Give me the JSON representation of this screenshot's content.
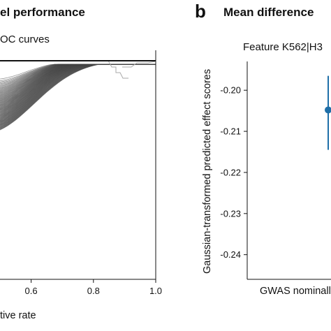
{
  "panel_a": {
    "header": "el performance",
    "subtitle": "OC curves",
    "xlabel": "tive rate"
  },
  "panel_b": {
    "letter": "b",
    "header": "Mean difference",
    "subtitle": "Feature K562|H3",
    "ylabel": "Gaussian-transformed predicted effect scores",
    "xlabel": "GWAS nominally"
  },
  "chart_data": [
    {
      "type": "line",
      "panel": "a",
      "description_visible": "many ROC curves",
      "x_ticks": [
        0.6,
        0.8,
        1.0
      ],
      "x_tick_labels": [
        "0.6",
        "0.8",
        "1.0"
      ],
      "xlim": [
        0.5,
        1.0
      ],
      "ylim": [
        0.7,
        1.0
      ],
      "curve_count": 120,
      "curve_start_y_range": [
        0.905,
        0.975
      ],
      "series_color": "#444444"
    },
    {
      "type": "scatter",
      "panel": "b",
      "y_ticks": [
        -0.2,
        -0.21,
        -0.22,
        -0.23,
        -0.24
      ],
      "y_tick_labels": [
        "-0.20",
        "-0.21",
        "-0.22",
        "-0.23",
        "-0.24"
      ],
      "ylim": [
        -0.246,
        -0.193
      ],
      "categories": [
        "GWAS nominally"
      ],
      "points": [
        {
          "category": "GWAS nominally",
          "y": -0.2048,
          "err_low": -0.2145,
          "err_high": -0.1965
        }
      ],
      "color": "#1f6fa8"
    }
  ]
}
